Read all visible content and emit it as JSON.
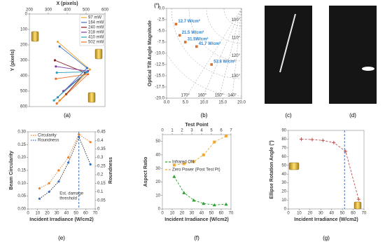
{
  "chart_data": [
    {
      "type": "line",
      "label": "(a)",
      "xlabel": "X (pixels)",
      "ylabel": "Y (pixels)",
      "x_axis": "top",
      "xlim": [
        200,
        600
      ],
      "xticks": [
        200,
        300,
        400,
        500,
        600
      ],
      "ylim": [
        600,
        0
      ],
      "yticks": [
        0,
        100,
        200,
        300,
        400,
        500,
        600
      ],
      "legend": "upper right",
      "series": [
        {
          "name": "97 mW",
          "color": "#f0a830",
          "marker": "circle",
          "linestyle": "solid",
          "x": [
            350,
            520,
            360
          ],
          "values": [
            180,
            360,
            560
          ]
        },
        {
          "name": "164 mW",
          "color": "#3a6fc4",
          "marker": "circle",
          "linestyle": "solid",
          "x": [
            360,
            505,
            350
          ],
          "values": [
            210,
            350,
            540
          ]
        },
        {
          "name": "240 mW",
          "color": "#8b1a1a",
          "marker": "circle",
          "linestyle": "solid",
          "x": [
            335,
            495,
            395
          ],
          "values": [
            300,
            380,
            520
          ]
        },
        {
          "name": "318 mW",
          "color": "#7a3aa0",
          "marker": "circle",
          "linestyle": "solid",
          "x": [
            340,
            510,
            380
          ],
          "values": [
            340,
            370,
            500
          ]
        },
        {
          "name": "410 mW",
          "color": "#2aa0b8",
          "marker": "circle",
          "linestyle": "solid",
          "x": [
            345,
            505,
            330
          ],
          "values": [
            380,
            375,
            560
          ]
        },
        {
          "name": "502 mW",
          "color": "#e8702a",
          "marker": "circle",
          "linestyle": "solid",
          "x": [
            340,
            510,
            345
          ],
          "values": [
            420,
            390,
            580
          ]
        }
      ]
    },
    {
      "type": "scatter",
      "label": "(b)",
      "ylabel": "Optical Tilt Angle Magnitude",
      "yunit": "(°)",
      "xlim": [
        0,
        20
      ],
      "xticks": [
        {
          "value": 0,
          "label": "0.0"
        },
        {
          "value": 5,
          "label": "5.0"
        },
        {
          "value": 10,
          "label": "10.0"
        },
        {
          "value": 15,
          "label": "15.0"
        },
        {
          "value": 20,
          "label": "20.0"
        }
      ],
      "ylim": [
        -20,
        0
      ],
      "yticks": [
        {
          "value": -20,
          "label": "-20.0"
        },
        -17.5,
        {
          "value": -15,
          "label": "-15.0"
        },
        -12.5,
        {
          "value": -10,
          "label": "-10.0"
        },
        -7.5,
        {
          "value": -5,
          "label": "-5.0"
        },
        -2.5,
        {
          "value": 0,
          "label": "0.0"
        }
      ],
      "color": "#d9702a",
      "x": [
        2.5,
        3.5,
        5,
        8,
        12
      ],
      "values": [
        -3.5,
        -6,
        -7.5,
        -8.5,
        -12.5
      ],
      "point_labels": [
        "12.7 W/cm²",
        "21.5 W/cm²",
        "31.5W/cm²",
        "41.7 W/cm²",
        "53.8 W/cm²"
      ],
      "angle_labels": [
        "100°",
        "110°",
        "120°",
        "130°",
        "140°",
        "150°",
        "160°",
        "170°"
      ]
    },
    {
      "type": "image",
      "label": "(c)"
    },
    {
      "type": "image",
      "label": "(d)"
    },
    {
      "type": "line",
      "label": "(e)",
      "xlabel": "Incident Irradiance (W/cm2)",
      "ylabel": "Beam Circularity",
      "y2label": "Roundness",
      "xlim": [
        0,
        70
      ],
      "xticks": [
        0,
        10,
        20,
        30,
        40,
        50,
        60,
        70
      ],
      "ylim": [
        0,
        0.3
      ],
      "yticks": [
        {
          "value": 0,
          "label": "0.00"
        },
        0.05,
        {
          "value": 0.1,
          "label": "0.10"
        },
        0.15,
        {
          "value": 0.2,
          "label": "0.20"
        },
        0.25,
        {
          "value": 0.3,
          "label": "0.30"
        }
      ],
      "y2lim": [
        0,
        0.45
      ],
      "y2ticks": [
        0,
        0.05,
        0.1,
        0.15,
        0.2,
        0.25,
        0.3,
        0.35,
        0.4,
        0.45
      ],
      "legend": "upper left",
      "vline": 53,
      "annotation": [
        "Est. damage",
        "threshold"
      ],
      "series": [
        {
          "name": "Circularity",
          "color": "#e8802a",
          "marker": "circle",
          "linestyle": "dotted",
          "x": [
            12,
            22,
            32,
            42,
            53,
            65
          ],
          "values": [
            0.08,
            0.1,
            0.15,
            0.2,
            0.29,
            0.26
          ]
        },
        {
          "name": "Roundness",
          "color": "#3a6fc4",
          "marker": "circle",
          "linestyle": "dotted",
          "axis": "y2",
          "x": [
            12,
            22,
            32,
            42,
            53,
            65
          ],
          "values": [
            0.06,
            0.1,
            0.16,
            0.27,
            0.42,
            0.26
          ]
        }
      ]
    },
    {
      "type": "line",
      "label": "(f)",
      "xlabel": "Incident Irradiance (W/cm2)",
      "ylabel": "Aspect Ratio",
      "x2label": "Test Point",
      "xlim": [
        0,
        70
      ],
      "xticks": [
        0,
        10,
        20,
        30,
        40,
        50,
        60,
        70
      ],
      "x2lim": [
        0,
        7
      ],
      "x2ticks": [
        0,
        1,
        2,
        3,
        4,
        5,
        6,
        7
      ],
      "ylim": [
        0,
        55
      ],
      "yticks": [
        0,
        10,
        20,
        30,
        40,
        50
      ],
      "legend": "center left",
      "series": [
        {
          "name": "Infrared ON",
          "color": "#2ca02c",
          "marker": "triangle",
          "linestyle": "dashed",
          "x": [
            12,
            22,
            32,
            42,
            53,
            65
          ],
          "values": [
            24,
            12,
            6.5,
            4,
            3,
            3.5
          ]
        },
        {
          "name": "Zero Power (Post Test Pt)",
          "color": "#f0a830",
          "marker": "square",
          "linestyle": "dashed",
          "x": [
            12,
            22,
            32,
            42,
            53,
            65
          ],
          "values": [
            32.5,
            33.5,
            35,
            40,
            49.5,
            54
          ]
        }
      ]
    },
    {
      "type": "line",
      "label": "(g)",
      "xlabel": "Incident Irradiance (W/cm2)",
      "ylabel": "Ellipse Rotation Angle (°)",
      "xlim": [
        0,
        70
      ],
      "xticks": [
        0,
        10,
        20,
        30,
        40,
        50,
        60,
        70
      ],
      "ylim": [
        0,
        90
      ],
      "yticks": [
        0,
        10,
        20,
        30,
        40,
        50,
        60,
        70,
        80,
        90
      ],
      "vline": 52,
      "series": [
        {
          "color": "#c0504d",
          "marker": "plus",
          "linestyle": "dashed",
          "x": [
            12,
            22,
            32,
            42,
            53,
            65
          ],
          "values": [
            80,
            79.5,
            78.5,
            76,
            66,
            11
          ]
        }
      ]
    }
  ]
}
